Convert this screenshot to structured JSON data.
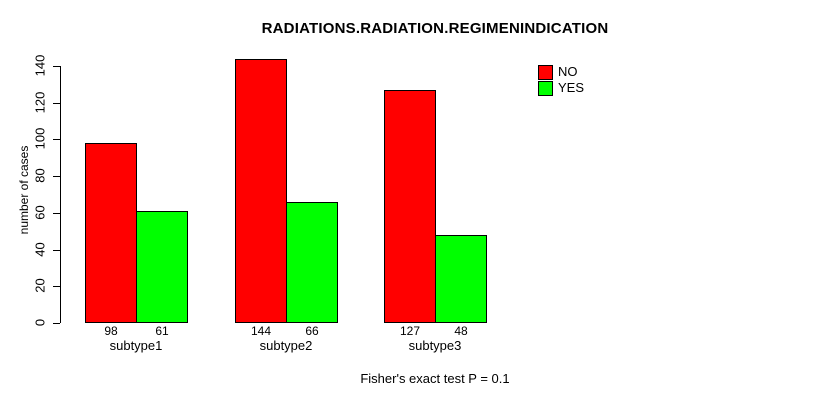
{
  "chart_data": {
    "type": "bar",
    "title": "RADIATIONS.RADIATION.REGIMENINDICATION",
    "ylabel": "number of cases",
    "xlabel": "",
    "categories": [
      "subtype1",
      "subtype2",
      "subtype3"
    ],
    "series": [
      {
        "name": "NO",
        "color": "#ff0000",
        "values": [
          98,
          144,
          127
        ]
      },
      {
        "name": "YES",
        "color": "#00ff00",
        "values": [
          61,
          66,
          48
        ]
      }
    ],
    "yticks": [
      0,
      20,
      40,
      60,
      80,
      100,
      120,
      140
    ],
    "ylim": [
      0,
      140
    ],
    "grid": false,
    "legend_position": "top-right",
    "bar_value_labels": [
      [
        "98",
        "61"
      ],
      [
        "144",
        "66"
      ],
      [
        "127",
        "48"
      ]
    ],
    "annotation": "Fisher's exact test P = 0.1"
  },
  "colors": {
    "background": "#ffffff",
    "axis": "#000000",
    "no_bar": "#ff0000",
    "yes_bar": "#00ff00"
  }
}
